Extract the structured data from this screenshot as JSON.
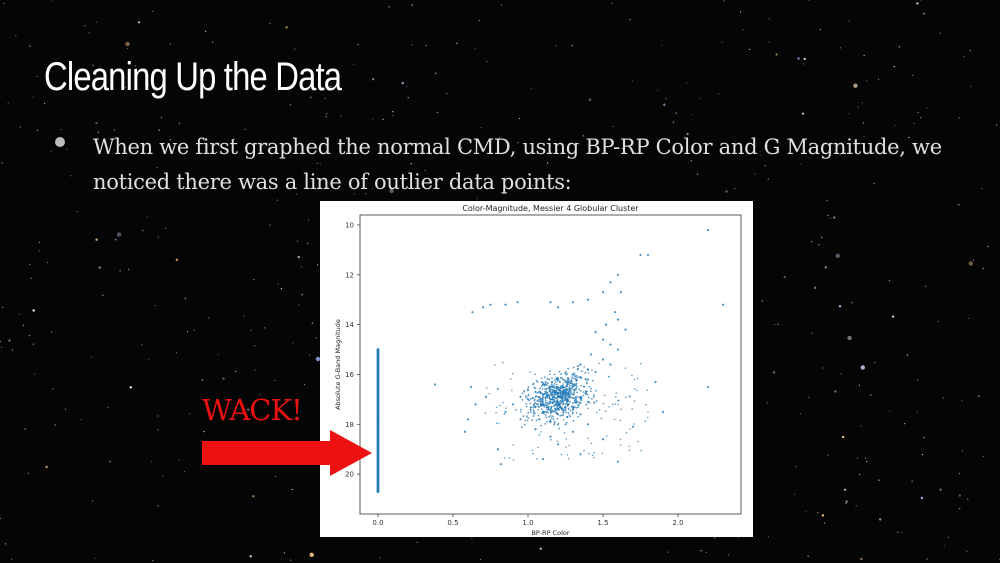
{
  "slide": {
    "title": "Cleaning Up the Data",
    "bullet": "When we first graphed the normal CMD, using BP-RP Color and G Magnitude, we noticed there was a line of outlier data points:",
    "annotation": "WACK!",
    "annotation_color": "#ee1111",
    "background_color": "#050505"
  },
  "chart_data": {
    "type": "scatter",
    "title": "Color-Magnitude, Messier 4 Globular Cluster",
    "xlabel": "BP-RP Color",
    "ylabel": "Absolute G-Band Magnitude",
    "xlim": [
      -0.12,
      2.42
    ],
    "ylim": [
      21.6,
      9.6
    ],
    "x_ticks": [
      "0.0",
      "0.5",
      "1.0",
      "1.5",
      "2.0"
    ],
    "y_ticks": [
      "10",
      "12",
      "14",
      "16",
      "18",
      "20"
    ],
    "y_inverted": true,
    "grid": false,
    "point_color": "#1f77b4",
    "series": [
      {
        "values": [
          [
            0.0,
            15.0
          ],
          [
            0.0,
            15.3
          ],
          [
            0.0,
            15.6
          ],
          [
            0.0,
            15.9
          ],
          [
            0.0,
            16.2
          ],
          [
            0.0,
            16.5
          ],
          [
            0.0,
            16.8
          ],
          [
            0.0,
            17.1
          ],
          [
            0.0,
            17.4
          ],
          [
            0.0,
            17.7
          ],
          [
            0.0,
            18.0
          ],
          [
            0.0,
            18.3
          ],
          [
            0.0,
            18.6
          ],
          [
            0.0,
            18.9
          ],
          [
            0.0,
            19.2
          ],
          [
            0.0,
            19.5
          ],
          [
            0.0,
            19.8
          ],
          [
            0.0,
            20.1
          ],
          [
            0.0,
            20.4
          ],
          [
            0.0,
            20.7
          ],
          [
            2.2,
            10.2
          ],
          [
            1.8,
            11.2
          ],
          [
            1.75,
            11.2
          ],
          [
            1.6,
            12.0
          ],
          [
            1.55,
            12.3
          ],
          [
            1.5,
            12.7
          ],
          [
            1.62,
            12.7
          ],
          [
            0.63,
            13.5
          ],
          [
            0.7,
            13.3
          ],
          [
            0.75,
            13.2
          ],
          [
            0.85,
            13.2
          ],
          [
            0.93,
            13.1
          ],
          [
            1.15,
            13.1
          ],
          [
            1.2,
            13.3
          ],
          [
            1.3,
            13.1
          ],
          [
            1.4,
            13.0
          ],
          [
            2.3,
            13.2
          ],
          [
            1.58,
            13.5
          ],
          [
            1.6,
            13.8
          ],
          [
            1.65,
            14.2
          ],
          [
            1.52,
            14.0
          ],
          [
            1.45,
            14.3
          ],
          [
            1.5,
            14.6
          ],
          [
            1.55,
            14.8
          ],
          [
            1.6,
            15.0
          ],
          [
            1.42,
            15.2
          ],
          [
            1.5,
            15.4
          ],
          [
            1.55,
            15.6
          ],
          [
            1.35,
            15.6
          ],
          [
            1.4,
            15.8
          ],
          [
            1.45,
            15.9
          ],
          [
            1.3,
            16.0
          ],
          [
            1.35,
            16.1
          ],
          [
            1.4,
            16.2
          ],
          [
            1.2,
            16.2
          ],
          [
            1.25,
            16.3
          ],
          [
            1.3,
            16.4
          ],
          [
            1.1,
            16.4
          ],
          [
            1.15,
            16.5
          ],
          [
            1.2,
            16.6
          ],
          [
            1.0,
            16.6
          ],
          [
            1.05,
            16.7
          ],
          [
            1.1,
            16.8
          ],
          [
            1.25,
            16.7
          ],
          [
            1.3,
            16.8
          ],
          [
            1.35,
            16.9
          ],
          [
            0.95,
            16.9
          ],
          [
            1.0,
            17.0
          ],
          [
            1.15,
            17.0
          ],
          [
            1.2,
            17.1
          ],
          [
            1.4,
            17.1
          ],
          [
            0.9,
            17.2
          ],
          [
            1.05,
            17.3
          ],
          [
            1.25,
            17.3
          ],
          [
            1.3,
            17.4
          ],
          [
            0.85,
            17.5
          ],
          [
            1.1,
            17.5
          ],
          [
            1.2,
            17.6
          ],
          [
            1.35,
            17.6
          ],
          [
            0.95,
            17.8
          ],
          [
            1.15,
            17.9
          ],
          [
            1.25,
            18.0
          ],
          [
            1.4,
            18.0
          ],
          [
            1.05,
            18.2
          ],
          [
            1.3,
            18.3
          ],
          [
            1.15,
            18.5
          ],
          [
            1.5,
            18.6
          ],
          [
            1.2,
            18.8
          ],
          [
            0.8,
            19.0
          ],
          [
            1.35,
            19.2
          ],
          [
            1.1,
            19.4
          ],
          [
            0.62,
            16.5
          ],
          [
            0.6,
            17.8
          ],
          [
            0.65,
            17.2
          ],
          [
            0.58,
            18.3
          ],
          [
            0.38,
            16.4
          ],
          [
            0.72,
            16.9
          ],
          [
            1.85,
            16.3
          ],
          [
            2.2,
            16.5
          ],
          [
            1.9,
            17.5
          ],
          [
            1.6,
            19.5
          ],
          [
            0.82,
            19.6
          ],
          [
            1.7,
            18.1
          ]
        ]
      }
    ]
  }
}
